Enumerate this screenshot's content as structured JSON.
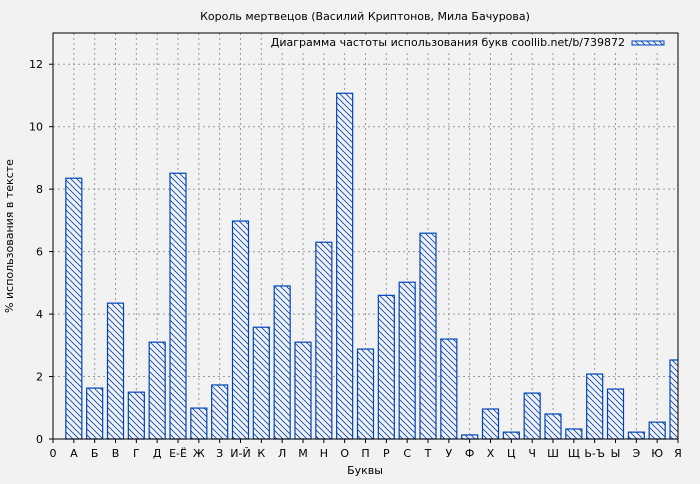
{
  "chart_data": {
    "type": "bar",
    "title": "Король мертвецов (Василий Криптонов, Мила Бачурова)",
    "xlabel": "Буквы",
    "ylabel": "% использования в тексте",
    "legend": {
      "label": "Диаграмма частоты использования букв coollib.net/b/739872",
      "placement": "top-right"
    },
    "ylim": [
      0,
      13
    ],
    "yticks": [
      "0",
      "2",
      "4",
      "6",
      "8",
      "10",
      "12"
    ],
    "grid": true,
    "bar_color": "#0044bb",
    "categories": [
      "0",
      "А",
      "Б",
      "В",
      "Г",
      "Д",
      "Е-Ё",
      "Ж",
      "З",
      "И-Й",
      "К",
      "Л",
      "М",
      "Н",
      "О",
      "П",
      "Р",
      "С",
      "Т",
      "У",
      "Ф",
      "Х",
      "Ц",
      "Ч",
      "Ш",
      "Щ",
      "Ь-Ъ",
      "Ы",
      "Э",
      "Ю",
      "Я"
    ],
    "values": [
      0,
      8.35,
      1.63,
      4.35,
      1.5,
      3.1,
      8.51,
      0.99,
      1.73,
      6.98,
      3.58,
      4.9,
      3.1,
      6.3,
      11.07,
      2.88,
      4.6,
      5.02,
      6.59,
      3.2,
      0.13,
      0.96,
      0.22,
      1.47,
      0.8,
      0.32,
      2.08,
      1.6,
      0.22,
      0.54,
      2.53
    ]
  }
}
